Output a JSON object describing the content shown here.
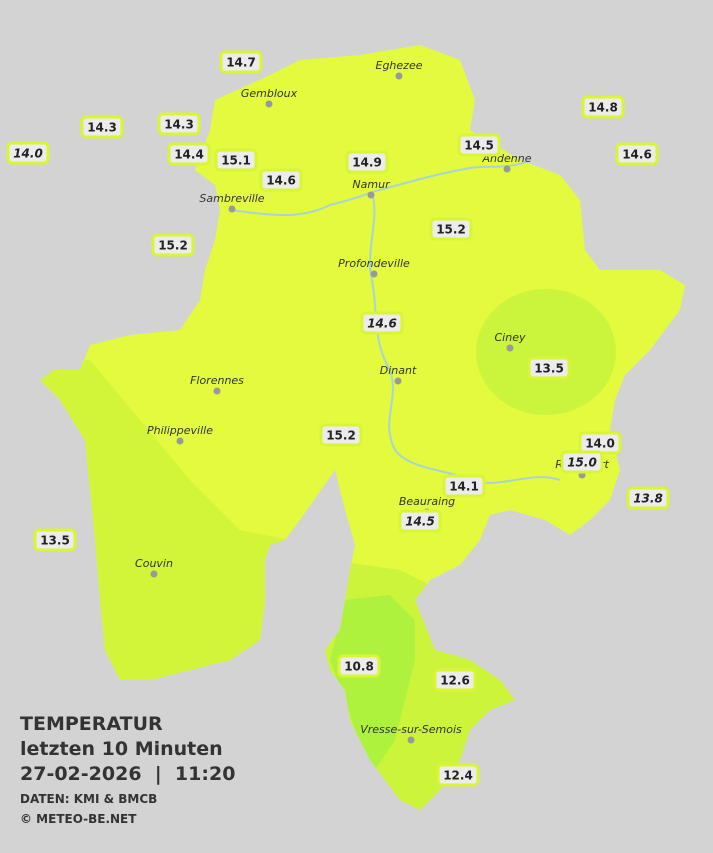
{
  "title": "TEMPERATUR",
  "subtitle": "letzten 10 Minuten",
  "datetime": "27-02-2026  |  11:20",
  "source": "DATEN: KMI & BMCB",
  "copyright": "© METEO-BE.NET",
  "cities": [
    "Eghezee",
    "Gembloux",
    "Andenne",
    "Namur",
    "Sambreville",
    "Profondeville",
    "Ciney",
    "Dinant",
    "Florennes",
    "Philippeville",
    "Rochefort",
    "Beauraing",
    "Couvin",
    "Vresse-sur-Semois"
  ],
  "stations": [
    {
      "label": "14.7",
      "italic": false
    },
    {
      "label": "14.3",
      "italic": false
    },
    {
      "label": "14.3",
      "italic": false
    },
    {
      "label": "14.0",
      "italic": true
    },
    {
      "label": "14.4",
      "italic": false
    },
    {
      "label": "15.1",
      "italic": false
    },
    {
      "label": "14.6",
      "italic": false
    },
    {
      "label": "14.9",
      "italic": false
    },
    {
      "label": "14.5",
      "italic": false
    },
    {
      "label": "14.8",
      "italic": false
    },
    {
      "label": "14.6",
      "italic": false
    },
    {
      "label": "15.2",
      "italic": false
    },
    {
      "label": "15.2",
      "italic": false
    },
    {
      "label": "14.6",
      "italic": true
    },
    {
      "label": "13.5",
      "italic": false
    },
    {
      "label": "15.2",
      "italic": false
    },
    {
      "label": "14.0",
      "italic": false
    },
    {
      "label": "15.0",
      "italic": true
    },
    {
      "label": "13.8",
      "italic": true
    },
    {
      "label": "14.1",
      "italic": false
    },
    {
      "label": "14.5",
      "italic": true
    },
    {
      "label": "13.5",
      "italic": false
    },
    {
      "label": "10.8",
      "italic": false
    },
    {
      "label": "12.6",
      "italic": false
    },
    {
      "label": "12.4",
      "italic": false
    }
  ]
}
